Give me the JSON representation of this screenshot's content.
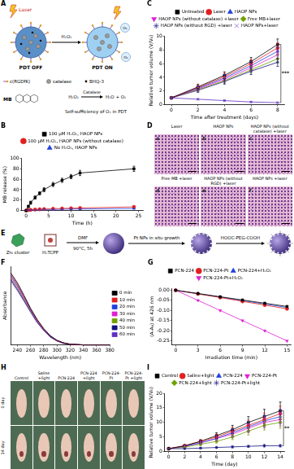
{
  "diagram_A": {
    "panel": "A",
    "laser": "Laser",
    "reagent": "H₂O₂",
    "product": "O₂",
    "state_off": "PDT OFF",
    "state_on": "PDT ON",
    "components": [
      "c(RGDfK)",
      "catalase",
      "BHQ-3",
      "MB"
    ],
    "reaction": {
      "enzyme": "Catalase",
      "reactant": "H₂O₂",
      "products": "H₂O + O₂"
    },
    "caption": "Self-sufficiency of O₂ in PDT"
  },
  "histology_D": {
    "panel": "D",
    "images": [
      {
        "letter": "a",
        "label": "Laser"
      },
      {
        "letter": "b",
        "label": "HAOP NPs"
      },
      {
        "letter": "c",
        "label": "HAOP NPs (without catalase) +laser"
      },
      {
        "letter": "d",
        "label": "Free MB +laser"
      },
      {
        "letter": "e",
        "label": "HAOP NPs (without RGD) +laser"
      },
      {
        "letter": "f",
        "label": "HAOP NPs +laser"
      }
    ]
  },
  "diagram_E": {
    "panel": "E",
    "reactants": [
      "Zr₆ cluster",
      "H₂TCPP"
    ],
    "steps": [
      {
        "above": "DMF",
        "below": "90°C, 5h"
      },
      {
        "above": "Pt NPs in situ growth"
      },
      {
        "above": "HOOC-PEG-COOH"
      }
    ]
  },
  "photos_H": {
    "panel": "H",
    "columns": [
      "Control",
      "Saline +light",
      "PCN-224",
      "PCN-224 +light",
      "PCN-224-Pt",
      "PCN-224-Pt +light"
    ],
    "rows": [
      "0 day",
      "14 day"
    ]
  },
  "chart_data": [
    {
      "panel": "B",
      "type": "line",
      "x_label": "Time (h)",
      "y_label": "MB release (%)",
      "x": [
        0,
        0.5,
        1,
        2,
        3,
        4,
        6,
        8,
        10,
        12,
        24
      ],
      "xlim": [
        -1,
        26
      ],
      "xticks": [
        0,
        5,
        10,
        15,
        20,
        25
      ],
      "ylim": [
        0,
        100
      ],
      "yticks": [
        0,
        20,
        40,
        60,
        80,
        100
      ],
      "grid": false,
      "legend": "top",
      "line_style": "solid",
      "series": [
        {
          "name": "100 μM H₂O₂, HAOP NPs",
          "color": "#000000",
          "marker": "square",
          "values": [
            0,
            8,
            15,
            25,
            33,
            40,
            50,
            58,
            65,
            72,
            80
          ],
          "errors": [
            1,
            2,
            3,
            3,
            3,
            4,
            4,
            4,
            4,
            5,
            5
          ]
        },
        {
          "name": "100 μM H₂O₂, HAOP NPs (without catalase)",
          "color": "#e02020",
          "marker": "circle",
          "values": [
            0,
            1,
            1.5,
            2,
            2.5,
            3,
            3.5,
            4,
            4.5,
            5,
            7
          ],
          "errors": [
            0.5,
            1,
            1,
            1,
            1,
            1,
            1,
            1,
            1,
            1,
            1
          ]
        },
        {
          "name": "No H₂O₂, HAOP NPs",
          "color": "#2040e0",
          "marker": "triangle",
          "values": [
            0,
            0.5,
            1,
            1,
            1.5,
            2,
            2,
            2.5,
            3,
            3,
            4
          ],
          "errors": [
            0.5,
            0.5,
            0.5,
            0.5,
            1,
            1,
            1,
            1,
            1,
            1,
            1
          ]
        }
      ]
    },
    {
      "panel": "C",
      "type": "line",
      "x_label": "Time after treatment (days)",
      "y_label": "Relative tumor volume (V/V₀)",
      "x": [
        0,
        2,
        4,
        6,
        8
      ],
      "xlim": [
        -0.5,
        8.5
      ],
      "xticks": [
        0,
        2,
        4,
        6,
        8
      ],
      "ylim": [
        0,
        10
      ],
      "yticks": [
        0,
        2,
        4,
        6,
        8,
        10
      ],
      "grid": false,
      "legend": "top",
      "line_style": "solid",
      "annotations": [
        "***"
      ],
      "series": [
        {
          "name": "Untreated",
          "color": "#000000",
          "marker": "square",
          "values": [
            1,
            2.6,
            4.3,
            6.3,
            8.8
          ],
          "errors": [
            0.1,
            0.4,
            0.5,
            0.6,
            0.8
          ]
        },
        {
          "name": "Laser",
          "color": "#e02020",
          "marker": "circle",
          "values": [
            1,
            2.5,
            4.1,
            6,
            8.3
          ],
          "errors": [
            0.1,
            0.4,
            0.5,
            0.6,
            0.7
          ]
        },
        {
          "name": "HAOP NPs",
          "color": "#2040e0",
          "marker": "triangle",
          "values": [
            1,
            2.4,
            3.9,
            5.7,
            7.8
          ],
          "errors": [
            0.1,
            0.3,
            0.5,
            0.6,
            0.7
          ]
        },
        {
          "name": "HAOP NPs (without catalase) +laser",
          "color": "#e020d0",
          "marker": "triangle_down",
          "values": [
            1,
            2.3,
            3.7,
            5.4,
            7.3
          ],
          "errors": [
            0.1,
            0.3,
            0.4,
            0.5,
            0.7
          ]
        },
        {
          "name": "Free MB+laser",
          "color": "#70a000",
          "marker": "diamond",
          "values": [
            1,
            2.2,
            3.5,
            5.1,
            6.7
          ],
          "errors": [
            0.1,
            0.3,
            0.4,
            0.5,
            0.6
          ]
        },
        {
          "name": "HAOP NPs (without RGD) +laser",
          "color": "#101080",
          "marker": "star",
          "values": [
            1,
            2.1,
            3.4,
            4.9,
            6.2
          ],
          "errors": [
            0.1,
            0.3,
            0.4,
            0.5,
            0.6
          ]
        },
        {
          "name": "HAOP NPs+laser",
          "color": "#6030c0",
          "marker": "cross",
          "values": [
            1,
            0.8,
            0.6,
            0.4,
            0.3
          ],
          "errors": [
            0.1,
            0.1,
            0.1,
            0.1,
            0.1
          ]
        }
      ]
    },
    {
      "panel": "F",
      "type": "line",
      "x_label": "Wavelength (nm)",
      "y_label": "Absorbance",
      "x": [
        230,
        240,
        250,
        260,
        270,
        280,
        290,
        300,
        310,
        320,
        340,
        360,
        380
      ],
      "xlim": [
        230,
        380
      ],
      "xticks": [
        240,
        260,
        280,
        300,
        320,
        340,
        360,
        380
      ],
      "ylim": [
        0,
        1.2
      ],
      "yticks": [],
      "tick_labels": "x",
      "grid": false,
      "legend": "right",
      "line_style": "solid",
      "series": [
        {
          "name": "0 min",
          "color": "#000000",
          "marker": "none",
          "values": [
            1.1,
            0.95,
            0.76,
            0.56,
            0.39,
            0.25,
            0.14,
            0.07,
            0.03,
            0.01,
            0,
            0,
            0
          ]
        },
        {
          "name": "10 min",
          "color": "#e02020",
          "marker": "none",
          "values": [
            1.08,
            0.93,
            0.74,
            0.55,
            0.38,
            0.24,
            0.14,
            0.07,
            0.03,
            0.01,
            0,
            0,
            0
          ]
        },
        {
          "name": "20 min",
          "color": "#2040e0",
          "marker": "none",
          "values": [
            1.06,
            0.91,
            0.73,
            0.54,
            0.37,
            0.24,
            0.13,
            0.07,
            0.03,
            0.01,
            0,
            0,
            0
          ]
        },
        {
          "name": "30 min",
          "color": "#e020d0",
          "marker": "none",
          "values": [
            1.04,
            0.89,
            0.71,
            0.53,
            0.36,
            0.23,
            0.13,
            0.06,
            0.03,
            0.01,
            0,
            0,
            0
          ]
        },
        {
          "name": "40 min",
          "color": "#70a000",
          "marker": "none",
          "values": [
            1.02,
            0.87,
            0.7,
            0.52,
            0.36,
            0.23,
            0.13,
            0.06,
            0.03,
            0.01,
            0,
            0,
            0
          ]
        },
        {
          "name": "50 min",
          "color": "#101080",
          "marker": "none",
          "values": [
            1.0,
            0.85,
            0.68,
            0.51,
            0.35,
            0.22,
            0.12,
            0.06,
            0.03,
            0.01,
            0,
            0,
            0
          ]
        },
        {
          "name": "60 min",
          "color": "#6030c0",
          "marker": "none",
          "values": [
            0.98,
            0.83,
            0.67,
            0.5,
            0.34,
            0.22,
            0.12,
            0.06,
            0.02,
            0.01,
            0,
            0,
            0
          ]
        }
      ]
    },
    {
      "panel": "G",
      "type": "line",
      "x_label": "Irradiation time (min)",
      "y_label": "(A-A₀) at 426 nm",
      "x": [
        0,
        3,
        6,
        9,
        12,
        15
      ],
      "xlim": [
        -0.5,
        15.5
      ],
      "xticks": [
        0,
        3,
        6,
        9,
        12,
        15
      ],
      "ylim": [
        -0.27,
        0.01
      ],
      "yticks": [
        -0.25,
        {
          "value": -0.2,
          "label": "-0.20"
        },
        -0.15,
        {
          "value": -0.1,
          "label": "-0.10"
        },
        -0.05,
        {
          "value": 0,
          "label": "0.00"
        }
      ],
      "grid": false,
      "legend": "top",
      "line_style": "solid",
      "series": [
        {
          "name": "PCN-224",
          "color": "#000000",
          "marker": "square",
          "values": [
            0,
            -0.016,
            -0.032,
            -0.048,
            -0.064,
            -0.08
          ]
        },
        {
          "name": "PCN-224-Pt",
          "color": "#e02020",
          "marker": "circle",
          "values": [
            0,
            -0.018,
            -0.036,
            -0.055,
            -0.073,
            -0.092
          ]
        },
        {
          "name": "PCN-224+H₂O₂",
          "color": "#2040e0",
          "marker": "triangle",
          "values": [
            0,
            -0.017,
            -0.034,
            -0.051,
            -0.068,
            -0.085
          ]
        },
        {
          "name": "PCN-224-Pt+H₂O₂",
          "color": "#e020d0",
          "marker": "triangle_down",
          "values": [
            0,
            -0.05,
            -0.1,
            -0.15,
            -0.2,
            -0.25
          ]
        }
      ]
    },
    {
      "panel": "I",
      "type": "line",
      "x_label": "Time (day)",
      "y_label": "Relative tumor volume (V/V₀)",
      "x": [
        0,
        2,
        4,
        6,
        8,
        10,
        12,
        14
      ],
      "xlim": [
        -0.5,
        14.5
      ],
      "xticks": [
        0,
        2,
        4,
        6,
        8,
        10,
        12,
        14
      ],
      "ylim": [
        0,
        20
      ],
      "yticks": [
        0,
        5,
        10,
        15,
        20
      ],
      "grid": false,
      "legend": "top",
      "line_style": "solid",
      "annotations": [
        "**"
      ],
      "series": [
        {
          "name": "Control",
          "color": "#000000",
          "marker": "square",
          "values": [
            1,
            2,
            3.5,
            5.5,
            7.5,
            10,
            12,
            14
          ],
          "errors": [
            0,
            0.3,
            0.6,
            1,
            1.5,
            2,
            2.5,
            3
          ]
        },
        {
          "name": "Saline+light",
          "color": "#e02020",
          "marker": "circle",
          "values": [
            1,
            2,
            3.5,
            5,
            7,
            9,
            11,
            13
          ],
          "errors": [
            0,
            0.3,
            0.5,
            1,
            1.4,
            1.8,
            2.2,
            2.6
          ]
        },
        {
          "name": "PCN-224",
          "color": "#2040e0",
          "marker": "triangle",
          "values": [
            1,
            1.8,
            3,
            4.5,
            6.5,
            8.5,
            10.5,
            12
          ],
          "errors": [
            0,
            0.3,
            0.5,
            0.8,
            1.2,
            1.6,
            2,
            2.4
          ]
        },
        {
          "name": "PCN-224-Pt",
          "color": "#e020d0",
          "marker": "triangle_down",
          "values": [
            1,
            1.8,
            3,
            4.5,
            6,
            8,
            10,
            11
          ],
          "errors": [
            0,
            0.3,
            0.5,
            0.8,
            1.1,
            1.5,
            1.9,
            2.2
          ]
        },
        {
          "name": "PCN-224+light",
          "color": "#70a000",
          "marker": "diamond",
          "values": [
            1,
            1.5,
            2.5,
            3.5,
            5,
            7,
            9,
            10
          ],
          "errors": [
            0,
            0.2,
            0.4,
            0.6,
            0.9,
            1.3,
            1.6,
            2
          ]
        },
        {
          "name": "PCN-224-Pt+light",
          "color": "#101080",
          "marker": "star",
          "values": [
            1,
            1,
            1.2,
            1.4,
            1.6,
            1.8,
            2,
            2
          ],
          "errors": [
            0,
            0.1,
            0.2,
            0.2,
            0.3,
            0.3,
            0.4,
            0.4
          ]
        }
      ]
    }
  ]
}
